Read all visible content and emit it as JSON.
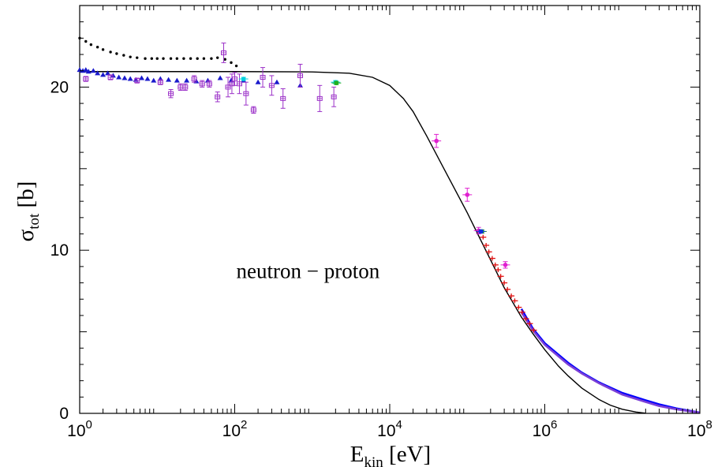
{
  "chart_data": {
    "type": "scatter",
    "title": "",
    "xlabel": "E",
    "xlabel_sub": "kin",
    "xlabel_unit": "[eV]",
    "ylabel": "σ",
    "ylabel_sub": "tot",
    "ylabel_unit": "[b]",
    "xscale": "log",
    "xlim": [
      1,
      100000000
    ],
    "ylim": [
      0,
      25
    ],
    "grid": false,
    "legend": "none",
    "x_ticks": [
      {
        "value": 1,
        "base": "10",
        "exp": "0"
      },
      {
        "value": 100,
        "base": "10",
        "exp": "2"
      },
      {
        "value": 10000,
        "base": "10",
        "exp": "4"
      },
      {
        "value": 1000000,
        "base": "10",
        "exp": "6"
      },
      {
        "value": 100000000,
        "base": "10",
        "exp": "8"
      }
    ],
    "y_ticks": [
      {
        "value": 0,
        "label": "0"
      },
      {
        "value": 10,
        "label": "10"
      },
      {
        "value": 20,
        "label": "20"
      }
    ],
    "annotations": [
      {
        "text": "neutron − proton",
        "x": 100,
        "y": 8.3
      }
    ],
    "curves": [
      {
        "color": "#000000",
        "points": [
          [
            1,
            20.95
          ],
          [
            10,
            20.95
          ],
          [
            100,
            20.95
          ],
          [
            1000,
            20.93
          ],
          [
            3000,
            20.85
          ],
          [
            6000,
            20.6
          ],
          [
            10000,
            20.1
          ],
          [
            15000,
            19.3
          ],
          [
            20000,
            18.5
          ],
          [
            30000,
            17.0
          ],
          [
            50000,
            15.0
          ],
          [
            100000,
            12.3
          ],
          [
            150000,
            10.6
          ],
          [
            200000,
            9.4
          ],
          [
            300000,
            7.7
          ],
          [
            500000,
            5.9
          ],
          [
            700000,
            4.9
          ],
          [
            1000000,
            3.9
          ],
          [
            1500000,
            2.9
          ],
          [
            2000000,
            2.3
          ],
          [
            3000000,
            1.55
          ],
          [
            5000000,
            0.85
          ],
          [
            7000000,
            0.5
          ],
          [
            10000000,
            0.25
          ],
          [
            15000000,
            0.08
          ],
          [
            20000000,
            0.01
          ]
        ]
      },
      {
        "color": "#0000ff",
        "points": [
          [
            500000,
            6.4
          ],
          [
            700000,
            5.2
          ],
          [
            1000000,
            4.3
          ],
          [
            2000000,
            3.1
          ],
          [
            3000000,
            2.5
          ],
          [
            5000000,
            1.9
          ],
          [
            10000000,
            1.25
          ],
          [
            20000000,
            0.8
          ],
          [
            30000000,
            0.55
          ],
          [
            50000000,
            0.3
          ],
          [
            100000000,
            0.05
          ]
        ]
      },
      {
        "color": "#7b3fd6",
        "points": [
          [
            500000,
            6.2
          ],
          [
            700000,
            5.1
          ],
          [
            1000000,
            4.2
          ],
          [
            2000000,
            3.0
          ],
          [
            3000000,
            2.45
          ],
          [
            5000000,
            1.85
          ],
          [
            10000000,
            1.15
          ],
          [
            20000000,
            0.7
          ],
          [
            30000000,
            0.45
          ],
          [
            50000000,
            0.25
          ],
          [
            100000000,
            0.04
          ]
        ]
      }
    ],
    "series": [
      {
        "marker": "dot",
        "color": "#000000",
        "points": [
          [
            1,
            23.0
          ],
          [
            1.2,
            22.8
          ],
          [
            1.4,
            22.6
          ],
          [
            1.7,
            22.45
          ],
          [
            2,
            22.3
          ],
          [
            2.5,
            22.15
          ],
          [
            3,
            22.05
          ],
          [
            3.7,
            21.95
          ],
          [
            4.5,
            21.85
          ],
          [
            5.5,
            21.8
          ],
          [
            7,
            21.75
          ],
          [
            8.5,
            21.75
          ],
          [
            10,
            21.75
          ],
          [
            12,
            21.75
          ],
          [
            15,
            21.75
          ],
          [
            18,
            21.75
          ],
          [
            22,
            21.75
          ],
          [
            27,
            21.75
          ],
          [
            33,
            21.75
          ],
          [
            40,
            21.75
          ],
          [
            50,
            21.75
          ],
          [
            60,
            21.8
          ],
          [
            75,
            21.7
          ],
          [
            90,
            21.5
          ],
          [
            105,
            21.3
          ]
        ]
      },
      {
        "marker": "triangle",
        "color": "#1a1acc",
        "points": [
          [
            1,
            21.05
          ],
          [
            1.1,
            21.0
          ],
          [
            1.2,
            21.05
          ],
          [
            1.3,
            20.95
          ],
          [
            1.5,
            21.0
          ],
          [
            1.7,
            20.85
          ],
          [
            2,
            20.75
          ],
          [
            2.3,
            20.85
          ],
          [
            2.7,
            20.7
          ],
          [
            3.2,
            20.6
          ],
          [
            3.8,
            20.55
          ],
          [
            4.5,
            20.5
          ],
          [
            5.3,
            20.45
          ],
          [
            6.3,
            20.55
          ],
          [
            7.5,
            20.5
          ],
          [
            9,
            20.4
          ],
          [
            11,
            20.5
          ],
          [
            14,
            20.45
          ],
          [
            18,
            20.4
          ],
          [
            24,
            20.4
          ],
          [
            32,
            20.35
          ],
          [
            45,
            20.4
          ],
          [
            65,
            20.55
          ],
          [
            90,
            20.4
          ],
          [
            130,
            20.4
          ],
          [
            200,
            20.3
          ],
          [
            350,
            20.3
          ],
          [
            700,
            20.1
          ]
        ]
      },
      {
        "marker": "square",
        "color": "#9b30c8",
        "points": [
          [
            1.2,
            20.5,
            0.15
          ],
          [
            2.5,
            20.6,
            0.15
          ],
          [
            5.5,
            20.4,
            0.15
          ],
          [
            11,
            20.3,
            0.15
          ],
          [
            15,
            19.6,
            0.25
          ],
          [
            20,
            20.0,
            0.2
          ],
          [
            23,
            20.0,
            0.2
          ],
          [
            30,
            20.5,
            0.2
          ],
          [
            38,
            20.2,
            0.2
          ],
          [
            47,
            20.2,
            0.2
          ],
          [
            60,
            19.4,
            0.3
          ],
          [
            72,
            22.1,
            0.6
          ],
          [
            82,
            20.0,
            0.6
          ],
          [
            92,
            20.2,
            0.6
          ],
          [
            100,
            20.5,
            0.4
          ],
          [
            115,
            20.2,
            0.6
          ],
          [
            140,
            19.6,
            0.7
          ],
          [
            175,
            18.6,
            0.2
          ],
          [
            230,
            20.6,
            0.6
          ],
          [
            300,
            20.1,
            0.6
          ],
          [
            420,
            19.3,
            0.6
          ],
          [
            700,
            20.7,
            0.7
          ],
          [
            1250,
            19.3,
            0.8
          ],
          [
            1900,
            19.4,
            0.6
          ]
        ]
      },
      {
        "marker": "circle",
        "color": "#e020d0",
        "points": [
          [
            40000,
            16.7,
            0.4
          ],
          [
            100000,
            13.4,
            0.4
          ],
          [
            140000,
            11.2,
            0.2
          ],
          [
            310000,
            9.1,
            0.2
          ]
        ]
      },
      {
        "marker": "circle",
        "color": "#00d0e0",
        "points": [
          [
            130,
            20.5,
            0.1
          ],
          [
            2000,
            20.3,
            0.1
          ]
        ]
      },
      {
        "marker": "circle",
        "color": "#20b020",
        "points": [
          [
            2050,
            20.25,
            0.1
          ],
          [
            155000,
            11.15,
            0.1
          ]
        ]
      },
      {
        "marker": "circle",
        "color": "#1030e0",
        "points": [
          [
            150000,
            11.15,
            0.1
          ]
        ]
      },
      {
        "marker": "cross",
        "color": "#e01010",
        "points": [
          [
            160000,
            10.8
          ],
          [
            175000,
            10.3
          ],
          [
            190000,
            9.9
          ],
          [
            210000,
            9.5
          ],
          [
            230000,
            9.1
          ],
          [
            250000,
            8.8
          ],
          [
            270000,
            8.4
          ],
          [
            300000,
            8.0
          ],
          [
            330000,
            7.6
          ],
          [
            370000,
            7.2
          ],
          [
            410000,
            6.9
          ],
          [
            460000,
            6.5
          ],
          [
            510000,
            6.2
          ],
          [
            570000,
            5.8
          ],
          [
            640000,
            5.5
          ],
          [
            720000,
            5.1
          ]
        ]
      }
    ]
  }
}
